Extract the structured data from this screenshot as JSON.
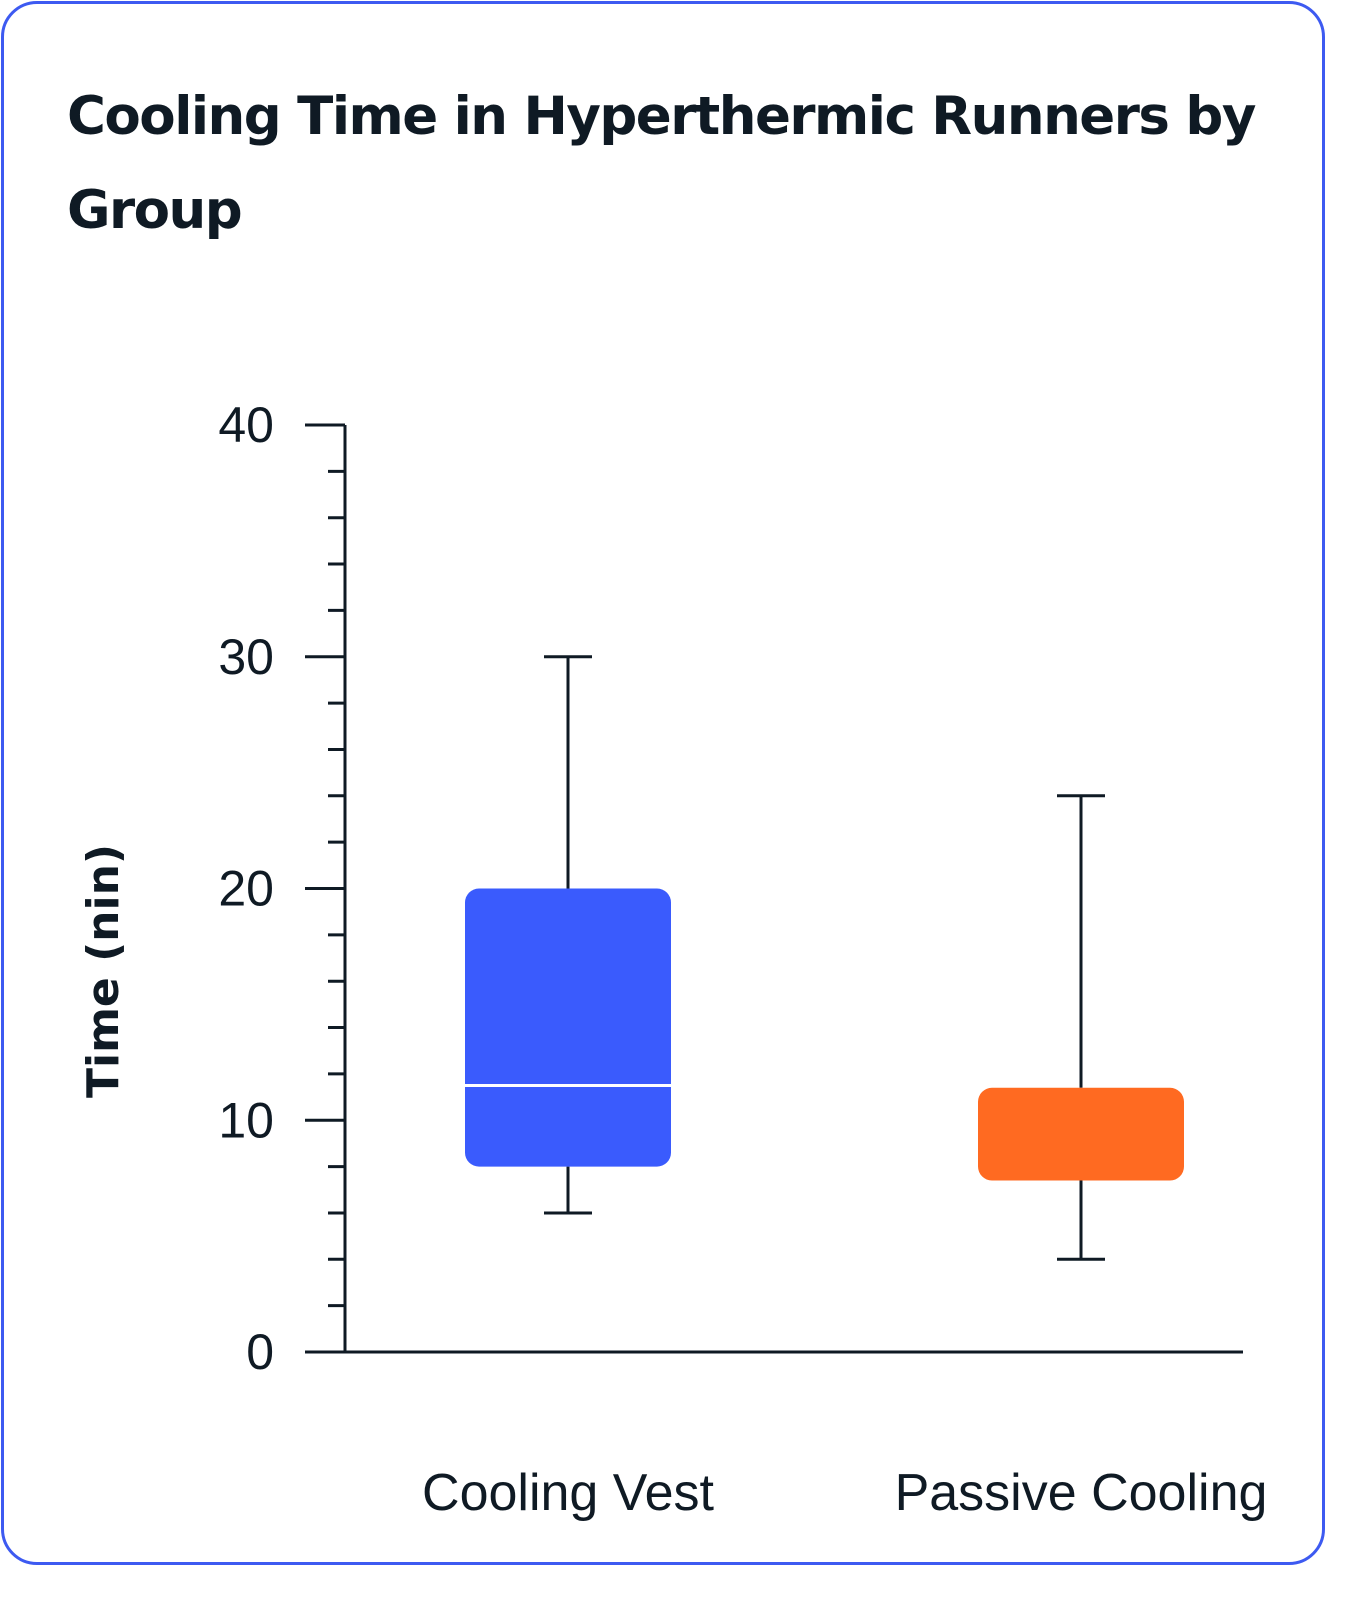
{
  "chart_data": {
    "type": "box",
    "title": "Cooling Time in Hyperthermic Runners by Group",
    "xlabel": "",
    "ylabel": "Time (nin)",
    "ylim": [
      0,
      40
    ],
    "major_ticks": [
      0,
      10,
      20,
      30,
      40
    ],
    "minor_tick_step": 2,
    "grid": false,
    "categories": [
      "Cooling Vest",
      "Passive Cooling"
    ],
    "series": [
      {
        "category": "Cooling Vest",
        "min": 6,
        "q1": 8,
        "median": 11.5,
        "q3": 20,
        "max": 30,
        "color": "#3a5bfd",
        "show_median": true
      },
      {
        "category": "Passive Cooling",
        "min": 4,
        "q1": 7.4,
        "median": 11.4,
        "q3": 11.4,
        "max": 24,
        "color": "#ff6a21",
        "show_median": false
      }
    ]
  },
  "colors": {
    "border": "#3d5af1",
    "axis": "#0f1a24",
    "median_line": "#ffffff"
  }
}
